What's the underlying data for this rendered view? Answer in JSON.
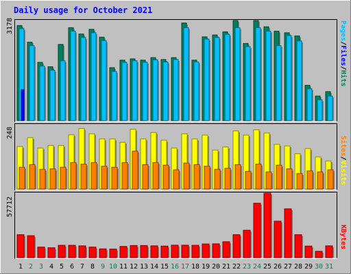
{
  "title": "Daily usage for October 2021",
  "colors": {
    "background": "#c0c0c0",
    "panel": "#c0c0c0",
    "title": "#0000ff",
    "hits": "#00805c",
    "files": "#0000ff",
    "pages": "#00c0ff",
    "visits": "#ffff00",
    "sites": "#ff8000",
    "kbytes": "#ff0000",
    "weekend_day": "#00805c",
    "weekday": "#000000"
  },
  "legend": {
    "pages": "Pages",
    "files": "Files",
    "hits": "Hits",
    "sites": "Sites",
    "visits": "Visits",
    "kbytes": "KBytes",
    "sep": "/"
  },
  "chart_data": [
    {
      "type": "bar",
      "name": "hits-files-pages",
      "y_max_label": "3178",
      "ylim": [
        0,
        3178
      ],
      "categories": [
        "1",
        "2",
        "3",
        "4",
        "5",
        "6",
        "7",
        "8",
        "9",
        "10",
        "11",
        "12",
        "13",
        "14",
        "15",
        "16",
        "17",
        "18",
        "19",
        "20",
        "21",
        "22",
        "23",
        "24",
        "25",
        "26",
        "27",
        "28",
        "29",
        "30",
        "31"
      ],
      "weekend_days": [
        "2",
        "3",
        "9",
        "10",
        "16",
        "17",
        "23",
        "24",
        "30",
        "31"
      ],
      "series": [
        {
          "name": "Hits",
          "values": [
            3020,
            2490,
            1850,
            1710,
            2420,
            2950,
            2750,
            2900,
            2650,
            1680,
            1920,
            1960,
            1920,
            2000,
            1940,
            2000,
            3100,
            1920,
            2660,
            2720,
            2820,
            3178,
            2450,
            3178,
            2980,
            2840,
            2790,
            2690,
            1120,
            780,
            920
          ]
        },
        {
          "name": "Files",
          "values": [
            2920,
            2380,
            1730,
            1600,
            1900,
            2840,
            2640,
            2790,
            2540,
            1560,
            1850,
            1900,
            1850,
            1930,
            1860,
            1940,
            2950,
            1860,
            2590,
            2640,
            2740,
            2950,
            2350,
            2950,
            2840,
            2380,
            2700,
            2530,
            1010,
            660,
            780
          ]
        },
        {
          "name": "Pages",
          "values": [
            980,
            0,
            0,
            0,
            0,
            0,
            0,
            0,
            0,
            0,
            0,
            0,
            0,
            0,
            0,
            0,
            0,
            0,
            0,
            0,
            0,
            0,
            0,
            0,
            0,
            0,
            0,
            0,
            0,
            0,
            0
          ]
        }
      ]
    },
    {
      "type": "bar",
      "name": "visits-sites",
      "y_max_label": "248",
      "ylim": [
        0,
        248
      ],
      "categories": [
        "1",
        "2",
        "3",
        "4",
        "5",
        "6",
        "7",
        "8",
        "9",
        "10",
        "11",
        "12",
        "13",
        "14",
        "15",
        "16",
        "17",
        "18",
        "19",
        "20",
        "21",
        "22",
        "23",
        "24",
        "25",
        "26",
        "27",
        "28",
        "29",
        "30",
        "31"
      ],
      "series": [
        {
          "name": "Visits",
          "values": [
            164,
            198,
            158,
            168,
            168,
            209,
            233,
            213,
            193,
            193,
            180,
            230,
            193,
            218,
            188,
            158,
            213,
            193,
            208,
            150,
            162,
            224,
            208,
            228,
            216,
            172,
            166,
            136,
            156,
            124,
            108
          ]
        },
        {
          "name": "Sites",
          "values": [
            84,
            94,
            76,
            78,
            84,
            102,
            96,
            102,
            88,
            84,
            102,
            146,
            94,
            102,
            92,
            74,
            100,
            94,
            88,
            76,
            80,
            94,
            68,
            96,
            66,
            92,
            78,
            60,
            70,
            66,
            74
          ]
        }
      ]
    },
    {
      "type": "bar",
      "name": "kbytes",
      "y_max_label": "57712",
      "ylim": [
        0,
        57712
      ],
      "categories": [
        "1",
        "2",
        "3",
        "4",
        "5",
        "6",
        "7",
        "8",
        "9",
        "10",
        "11",
        "12",
        "13",
        "14",
        "15",
        "16",
        "17",
        "18",
        "19",
        "20",
        "21",
        "22",
        "23",
        "24",
        "25",
        "26",
        "27",
        "28",
        "29",
        "30",
        "31"
      ],
      "series": [
        {
          "name": "KBytes",
          "values": [
            20500,
            19600,
            9400,
            8800,
            11000,
            11000,
            10500,
            9400,
            7800,
            7600,
            10000,
            10800,
            10800,
            10500,
            10300,
            11100,
            11100,
            11000,
            12200,
            12300,
            14200,
            20500,
            24500,
            48700,
            57712,
            32600,
            43700,
            20500,
            10300,
            5600,
            10500
          ]
        }
      ]
    }
  ]
}
